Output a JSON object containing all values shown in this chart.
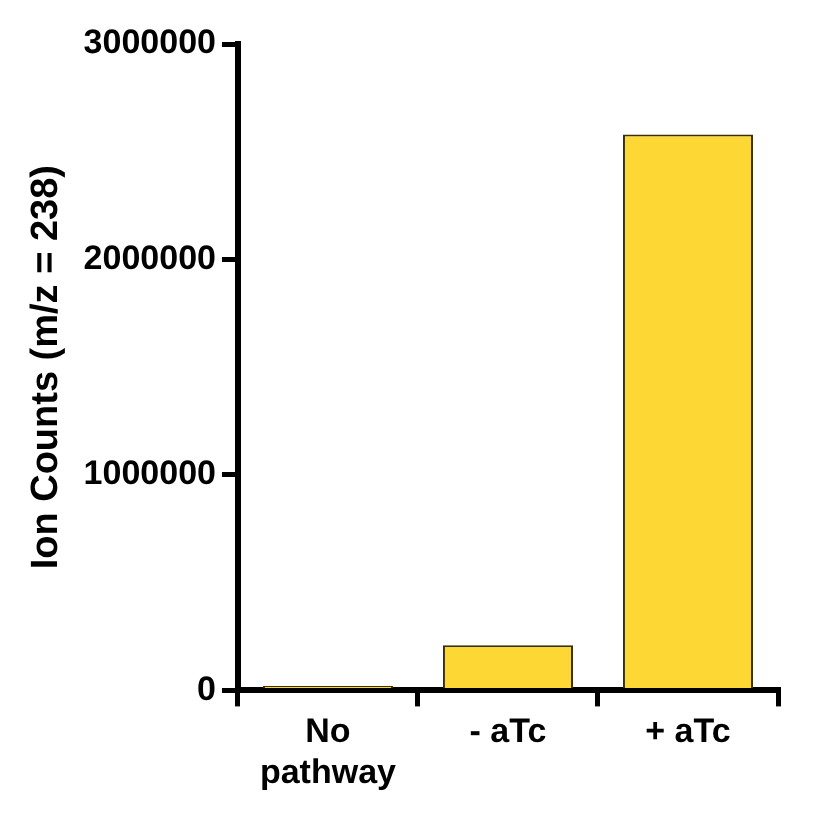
{
  "chart_data": {
    "type": "bar",
    "ylabel": "Ion Counts (m/z = 238)",
    "categories": [
      "No pathway",
      "- aTc",
      "+ aTc"
    ],
    "values": [
      20000,
      210000,
      2580000
    ],
    "color": "#fdd835",
    "ylim": [
      0,
      3000000
    ],
    "yticks": [
      0,
      1000000,
      2000000,
      3000000
    ],
    "grid": false
  }
}
